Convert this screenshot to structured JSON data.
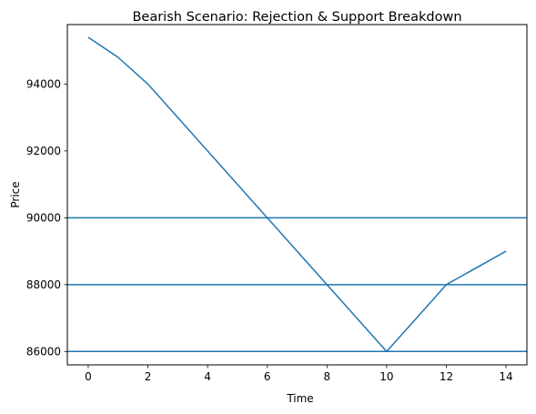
{
  "chart_data": {
    "type": "line",
    "title": "Bearish Scenario: Rejection & Support Breakdown",
    "xlabel": "Time",
    "ylabel": "Price",
    "xlim": [
      -0.7,
      14.7
    ],
    "ylim": [
      85600,
      95780
    ],
    "xticks": [
      0,
      2,
      4,
      6,
      8,
      10,
      12,
      14
    ],
    "yticks": [
      86000,
      88000,
      90000,
      92000,
      94000
    ],
    "line_color": "#1f77b4",
    "grid": false,
    "legend": "none",
    "series": [
      {
        "x": [
          0,
          1,
          2,
          3,
          4,
          5,
          6,
          7,
          8,
          9,
          10,
          11,
          12,
          13,
          14
        ],
        "values": [
          95400,
          94800,
          94000,
          93000,
          92000,
          91000,
          90000,
          89000,
          88000,
          87000,
          86000,
          87000,
          88000,
          88500,
          89000
        ]
      }
    ],
    "horizontal_lines": [
      90000,
      88000,
      86000
    ]
  }
}
